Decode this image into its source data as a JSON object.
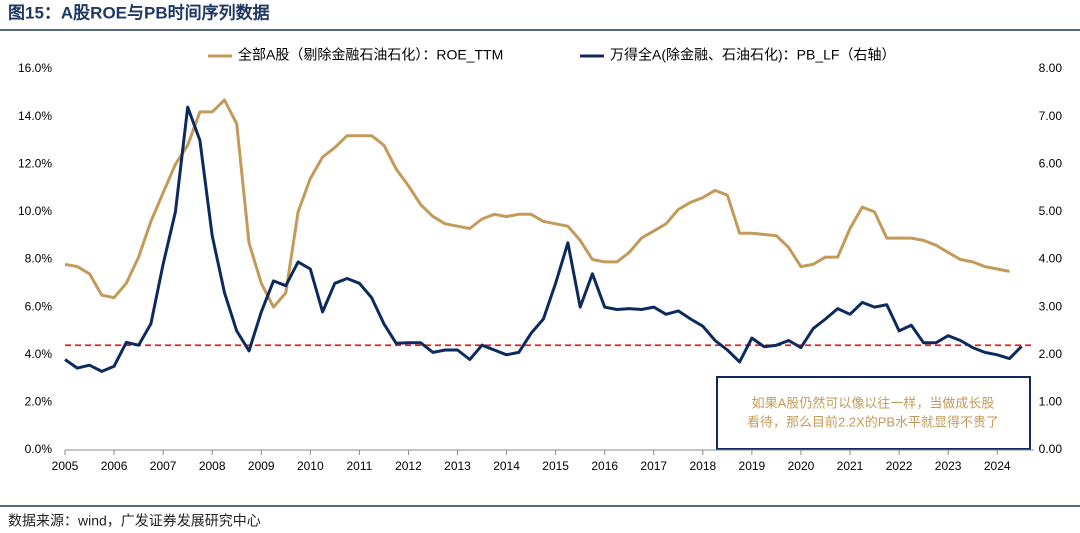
{
  "chart_data": {
    "type": "line",
    "title": "图15：A股ROE与PB时间序列数据",
    "source": "数据来源：wind，广发证券发展研究中心",
    "x": [
      2005,
      2005.25,
      2005.5,
      2005.75,
      2006,
      2006.25,
      2006.5,
      2006.75,
      2007,
      2007.25,
      2007.5,
      2007.75,
      2008,
      2008.25,
      2008.5,
      2008.75,
      2009,
      2009.25,
      2009.5,
      2009.75,
      2010,
      2010.25,
      2010.5,
      2010.75,
      2011,
      2011.25,
      2011.5,
      2011.75,
      2012,
      2012.25,
      2012.5,
      2012.75,
      2013,
      2013.25,
      2013.5,
      2013.75,
      2014,
      2014.25,
      2014.5,
      2014.75,
      2015,
      2015.25,
      2015.5,
      2015.75,
      2016,
      2016.25,
      2016.5,
      2016.75,
      2017,
      2017.25,
      2017.5,
      2017.75,
      2018,
      2018.25,
      2018.5,
      2018.75,
      2019,
      2019.25,
      2019.5,
      2019.75,
      2020,
      2020.25,
      2020.5,
      2020.75,
      2021,
      2021.25,
      2021.5,
      2021.75,
      2022,
      2022.25,
      2022.5,
      2022.75,
      2023,
      2023.25,
      2023.5,
      2023.75,
      2024,
      2024.25,
      2024.5
    ],
    "series": [
      {
        "name": "全部A股（剔除金融石油石化）：ROE_TTM",
        "color": "#c49a5a",
        "values": [
          7.8,
          7.7,
          7.4,
          6.5,
          6.4,
          7.0,
          8.1,
          9.6,
          10.8,
          12.0,
          12.8,
          14.2,
          14.2,
          14.7,
          13.7,
          8.7,
          7.0,
          6.0,
          6.6,
          10.0,
          11.4,
          12.3,
          12.7,
          13.2,
          13.2,
          13.2,
          12.8,
          11.8,
          11.1,
          10.3,
          9.8,
          9.5,
          9.4,
          9.3,
          9.7,
          9.9,
          9.8,
          9.9,
          9.9,
          9.6,
          9.5,
          9.4,
          8.8,
          8.0,
          7.9,
          7.9,
          8.3,
          8.9,
          9.2,
          9.5,
          10.1,
          10.4,
          10.6,
          10.9,
          10.7,
          9.1,
          9.1,
          9.05,
          9.0,
          8.5,
          7.7,
          7.8,
          8.1,
          8.1,
          9.3,
          10.2,
          10.0,
          8.9,
          8.9,
          8.9,
          8.8,
          8.6,
          8.3,
          8.0,
          7.9,
          7.7,
          7.6,
          7.5,
          null
        ]
      },
      {
        "name": "万得全A(除金融、石油石化)：PB_LF（右轴）",
        "color": "#0d2a5e",
        "axis": "y2",
        "values": [
          1.9,
          1.72,
          1.78,
          1.65,
          1.76,
          2.26,
          2.2,
          2.65,
          3.9,
          5.0,
          7.2,
          6.5,
          4.5,
          3.3,
          2.5,
          2.08,
          2.9,
          3.55,
          3.45,
          3.95,
          3.8,
          2.9,
          3.5,
          3.6,
          3.5,
          3.2,
          2.65,
          2.24,
          2.25,
          2.25,
          2.05,
          2.1,
          2.1,
          1.9,
          2.2,
          2.1,
          2.0,
          2.05,
          2.45,
          2.75,
          3.5,
          4.35,
          3.0,
          3.7,
          3.0,
          2.95,
          2.97,
          2.95,
          3.0,
          2.85,
          2.92,
          2.75,
          2.6,
          2.3,
          2.1,
          1.85,
          2.35,
          2.17,
          2.2,
          2.3,
          2.15,
          2.55,
          2.75,
          2.97,
          2.85,
          3.1,
          3.0,
          3.05,
          2.5,
          2.62,
          2.25,
          2.25,
          2.4,
          2.3,
          2.15,
          2.05,
          2.0,
          1.92,
          2.18
        ]
      }
    ],
    "xlim": [
      2005,
      2024.75
    ],
    "xticks": [
      2005,
      2006,
      2007,
      2008,
      2009,
      2010,
      2011,
      2012,
      2013,
      2014,
      2015,
      2016,
      2017,
      2018,
      2019,
      2020,
      2021,
      2022,
      2023,
      2024
    ],
    "ylim": [
      0,
      16
    ],
    "yticks": [
      {
        "value": 0,
        "label": "0.0%"
      },
      {
        "value": 2,
        "label": "2.0%"
      },
      {
        "value": 4,
        "label": "4.0%"
      },
      {
        "value": 6,
        "label": "6.0%"
      },
      {
        "value": 8,
        "label": "8.0%"
      },
      {
        "value": 10,
        "label": "10.0%"
      },
      {
        "value": 12,
        "label": "12.0%"
      },
      {
        "value": 14,
        "label": "14.0%"
      },
      {
        "value": 16,
        "label": "16.0%"
      }
    ],
    "y2lim": [
      0,
      8
    ],
    "y2ticks": [
      {
        "value": 0,
        "label": "0.00"
      },
      {
        "value": 1,
        "label": "1.00"
      },
      {
        "value": 2,
        "label": "2.00"
      },
      {
        "value": 3,
        "label": "3.00"
      },
      {
        "value": 4,
        "label": "4.00"
      },
      {
        "value": 5,
        "label": "5.00"
      },
      {
        "value": 6,
        "label": "6.00"
      },
      {
        "value": 7,
        "label": "7.00"
      },
      {
        "value": 8,
        "label": "8.00"
      }
    ],
    "reference_line": {
      "value": 2.2,
      "axis": "y2",
      "color": "#e8201e"
    },
    "annotation": [
      "如果A股仍然可以像以往一样，当做成长股",
      "看待，那么目前2.2X的PB水平就显得不贵了"
    ],
    "annotation_color": "#c49a5a"
  }
}
